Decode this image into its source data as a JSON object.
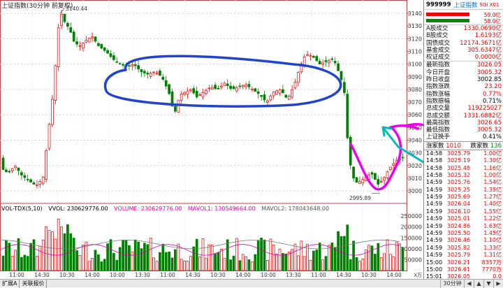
{
  "header": {
    "title": "上证指数(30分钟 前复权)",
    "high_marker": "3140.44",
    "low_marker": "2995.89"
  },
  "volume_legend": {
    "name": "VOL-TDX(5,10)",
    "vvol": "VVOL: 230629776.00",
    "vol": "VOLUME: 230629776.00",
    "mavol1": "MAVOL1: 130549664.00",
    "mavol2": "MAVOL2: 178043648.00"
  },
  "price_axis": [
    "3140",
    "3130",
    "3120",
    "3110",
    "3100",
    "3090",
    "3080",
    "3070",
    "3060",
    "3050",
    "3040",
    "3030",
    "3020",
    "3010",
    "3000"
  ],
  "volume_axis": [
    "250000",
    "200000",
    "150000",
    "100000",
    "50000"
  ],
  "volume_axis_unit": "X万",
  "time_axis": [
    "11:00",
    "14:30",
    "10:30",
    "14:00",
    "10:00",
    "13:30",
    "11:00",
    "14:30",
    "10:30",
    "14:00",
    "10:00",
    "13:30",
    "11:00",
    "14:30",
    "10:30",
    "14:00"
  ],
  "tabs": [
    "扩展A",
    "关联报价"
  ],
  "nav": {
    "period": "30分钟"
  },
  "colors": {
    "up": "#e00000",
    "down": "#008000",
    "annotation_blue": "#2244cc",
    "annotation_magenta": "#ee00ee",
    "annotation_teal": "#00bbbb"
  },
  "panel": {
    "code": "999999",
    "name": "上证指数",
    "tag": "SGI X01",
    "mini_v1": "59.0亿",
    "mini_v2": "58.0亿",
    "stats": [
      {
        "k": "A股成交",
        "v": "1330.0690亿",
        "c": "red"
      },
      {
        "k": "B股成交",
        "v": "1.6193亿",
        "c": "red"
      },
      {
        "k": "国债成交",
        "v": "12174.3671亿",
        "c": "red"
      },
      {
        "k": "基金成交",
        "v": "305.6347亿",
        "c": "red"
      },
      {
        "k": "权证成交",
        "v": "0.0000亿",
        "c": "red"
      }
    ],
    "stats2": [
      {
        "k": "最新指数",
        "v": "3026.05",
        "c": "red"
      },
      {
        "k": "今日开盘",
        "v": "3005.32",
        "c": "red"
      },
      {
        "k": "昨日收盘",
        "v": "3002.85",
        "c": "black"
      },
      {
        "k": "指数涨跌",
        "v": "23.20",
        "c": "red"
      },
      {
        "k": "指数涨幅",
        "v": "0.77%",
        "c": "red"
      },
      {
        "k": "指数振幅",
        "v": "0.71%",
        "c": "black"
      },
      {
        "k": "总成交量",
        "v": "119225027",
        "c": "red"
      },
      {
        "k": "总成交额",
        "v": "1331.6882亿",
        "c": "red"
      },
      {
        "k": "最高指数",
        "v": "3026.65",
        "c": "red"
      },
      {
        "k": "最低指数",
        "v": "3005.32",
        "c": "red"
      },
      {
        "k": "上证换手",
        "v": "0.41%",
        "c": "black"
      }
    ],
    "up_label": "涨家数",
    "up_count": "1010",
    "down_label": "跌家数",
    "down_count": "136",
    "ticks": [
      {
        "t": "14:58",
        "p": "3025.79",
        "q": "1.00亿",
        "c": "red"
      },
      {
        "t": "14:58",
        "p": "3025.19",
        "q": "1.30亿",
        "c": "red"
      },
      {
        "t": "14:58",
        "p": "3025.48",
        "q": "1.16亿",
        "c": "red"
      },
      {
        "t": "14:58",
        "p": "3025.32",
        "q": "1.00亿",
        "c": "red"
      },
      {
        "t": "14:59",
        "p": "3025.76",
        "q": "1.54亿",
        "c": "red"
      },
      {
        "t": "14:59",
        "p": "3025.25",
        "q": "1.35亿",
        "c": "red"
      },
      {
        "t": "14:59",
        "p": "3025.69",
        "q": "1.27亿",
        "c": "red"
      },
      {
        "t": "14:59",
        "p": "3026.04",
        "q": "1.40亿",
        "c": "red"
      },
      {
        "t": "14:59",
        "p": "3026.10",
        "q": "1.55亿",
        "c": "red"
      },
      {
        "t": "14:59",
        "p": "3025.01",
        "q": "1.22亿",
        "c": "red"
      },
      {
        "t": "14:59",
        "p": "3024.86",
        "q": "1.63亿",
        "c": "red"
      },
      {
        "t": "14:59",
        "p": "3025.50",
        "q": "1.45亿",
        "c": "red"
      },
      {
        "t": "14:59",
        "p": "3026.46",
        "q": "1.10亿",
        "c": "red"
      },
      {
        "t": "14:59",
        "p": "3025.82",
        "q": "1.33亿",
        "c": "red"
      },
      {
        "t": "14:59",
        "p": "3025.79",
        "q": "1.31亿",
        "c": "red"
      },
      {
        "t": "15:00",
        "p": "3026.21",
        "q": "8357万",
        "c": "red"
      },
      {
        "t": "15:00",
        "p": "3026.61",
        "q": "7770万",
        "c": "red"
      },
      {
        "t": "15:01",
        "p": "3026.05",
        "q": "0.0",
        "c": "red"
      }
    ]
  }
}
